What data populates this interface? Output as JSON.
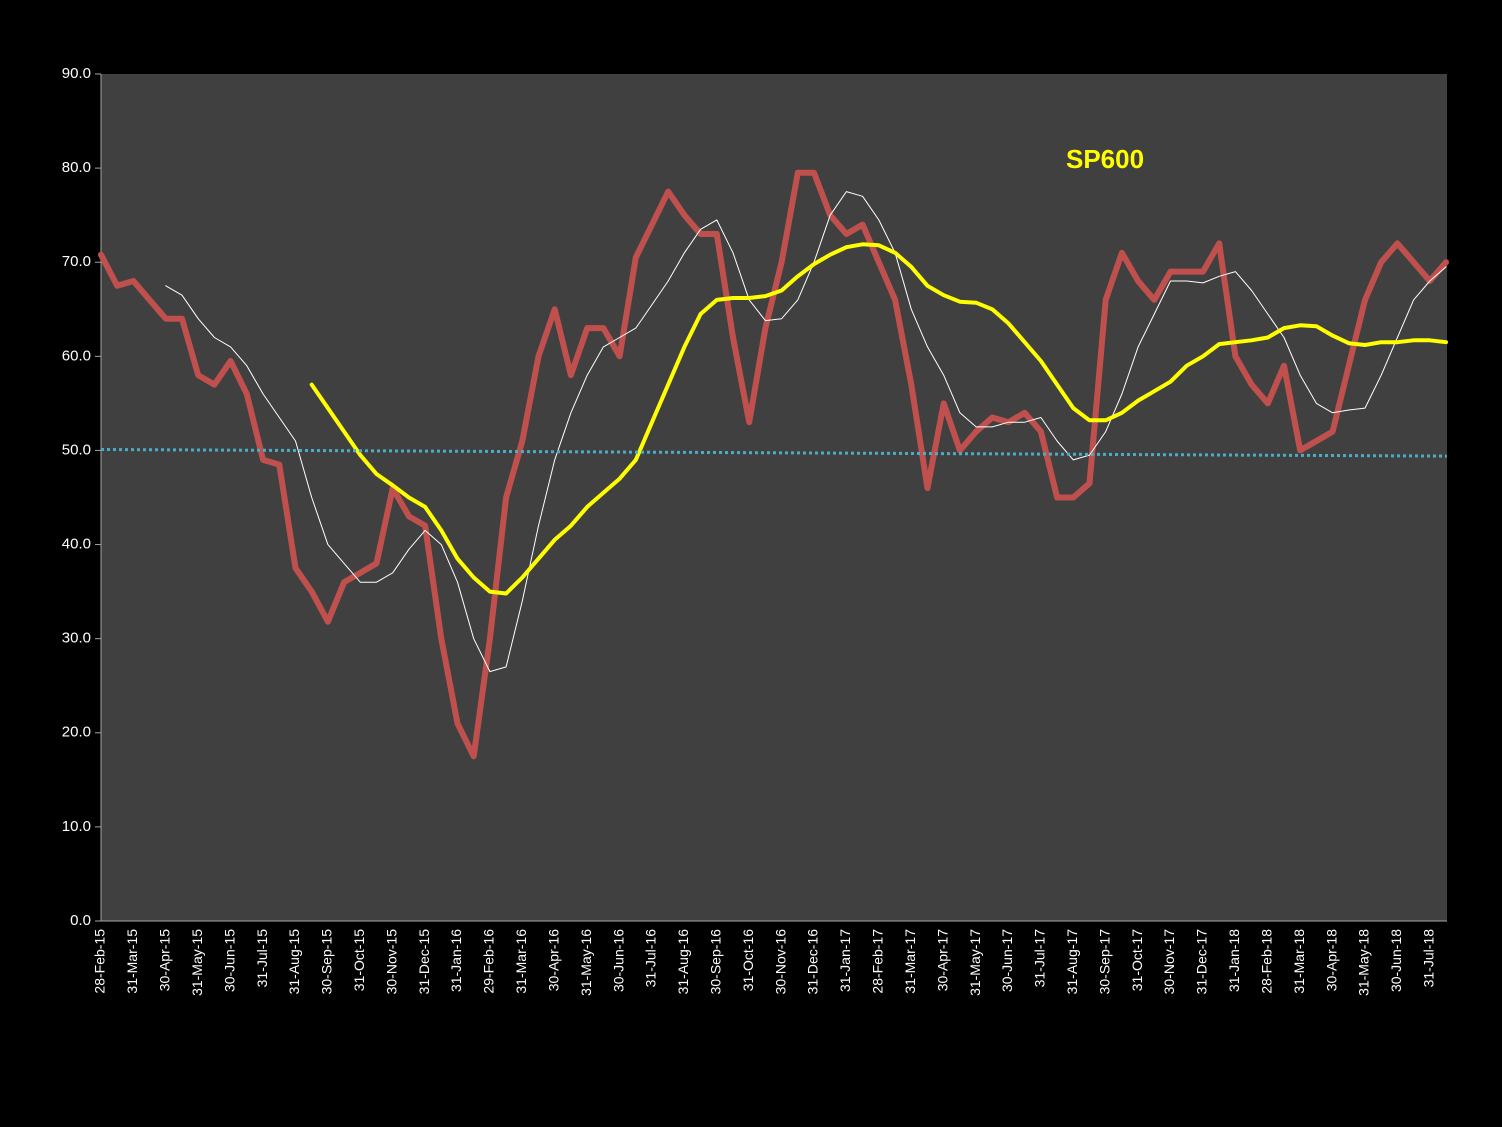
{
  "chart_data": {
    "type": "line",
    "annotation": {
      "text": "SP600",
      "color": "#ffff00"
    },
    "categories": [
      "28-Feb-15",
      null,
      "31-Mar-15",
      null,
      "30-Apr-15",
      null,
      "31-May-15",
      null,
      "30-Jun-15",
      null,
      "31-Jul-15",
      null,
      "31-Aug-15",
      null,
      "30-Sep-15",
      null,
      "31-Oct-15",
      null,
      "30-Nov-15",
      null,
      "31-Dec-15",
      null,
      "31-Jan-16",
      null,
      "29-Feb-16",
      null,
      "31-Mar-16",
      null,
      "30-Apr-16",
      null,
      "31-May-16",
      null,
      "30-Jun-16",
      null,
      "31-Jul-16",
      null,
      "31-Aug-16",
      null,
      "30-Sep-16",
      null,
      "31-Oct-16",
      null,
      "30-Nov-16",
      null,
      "31-Dec-16",
      null,
      "31-Jan-17",
      null,
      "28-Feb-17",
      null,
      "31-Mar-17",
      null,
      "30-Apr-17",
      null,
      "31-May-17",
      null,
      "30-Jun-17",
      null,
      "31-Jul-17",
      null,
      "31-Aug-17",
      null,
      "30-Sep-17",
      null,
      "31-Oct-17",
      null,
      "30-Nov-17",
      null,
      "31-Dec-17",
      null,
      "31-Jan-18",
      null,
      "28-Feb-18",
      null,
      "31-Mar-18",
      null,
      "30-Apr-18",
      null,
      "31-May-18",
      null,
      "30-Jun-18",
      null,
      "31-Jul-18",
      null
    ],
    "series": [
      {
        "color": "#c0504d",
        "width": 6,
        "values": [
          70.8,
          67.5,
          68,
          66,
          64,
          64,
          58,
          57,
          59.5,
          56,
          49,
          48.5,
          37.5,
          35,
          31.8,
          36,
          37,
          38,
          46,
          43,
          42,
          30,
          21,
          17.5,
          30,
          45,
          51,
          60,
          65,
          58,
          63,
          63,
          60,
          70.5,
          74,
          77.5,
          75,
          73,
          73,
          62,
          53,
          63,
          70,
          79.5,
          79.5,
          75,
          73,
          74,
          70,
          66,
          57,
          46,
          55,
          50,
          52,
          53.5,
          53,
          54,
          52,
          45,
          45,
          46.5,
          66,
          71,
          68,
          66,
          69,
          69,
          69,
          72,
          60,
          57,
          55,
          59,
          50,
          51,
          52,
          59,
          66,
          70,
          72,
          70,
          68,
          70
        ]
      },
      {
        "color": "#ffffff",
        "width": 1,
        "values": [
          null,
          null,
          null,
          null,
          67.5,
          66.5,
          64,
          62,
          61,
          59,
          56,
          53.5,
          51,
          45,
          40,
          38,
          36,
          36,
          37,
          39.5,
          41.5,
          40,
          36,
          30,
          26.5,
          27,
          34,
          42,
          49,
          54,
          58,
          61,
          62,
          63,
          65.5,
          68,
          71,
          73.5,
          74.5,
          71,
          66,
          63.8,
          64,
          66,
          70,
          75,
          77.5,
          77,
          74.5,
          71,
          65,
          61,
          58,
          54,
          52.5,
          52.5,
          53,
          53,
          53.5,
          51,
          49,
          49.5,
          52,
          56,
          61,
          64.5,
          68,
          68,
          67.8,
          68.5,
          69,
          67,
          64.5,
          62,
          58,
          55,
          54,
          54.3,
          54.5,
          58,
          62,
          66,
          68,
          69.5
        ]
      },
      {
        "color": "#ffff00",
        "width": 4,
        "values": [
          null,
          null,
          null,
          null,
          null,
          null,
          null,
          null,
          null,
          null,
          null,
          null,
          null,
          57,
          54.5,
          52,
          49.5,
          47.5,
          46.3,
          45,
          44,
          41.5,
          38.5,
          36.5,
          35,
          34.8,
          36.5,
          38.5,
          40.5,
          42,
          44,
          45.5,
          47,
          49,
          53,
          57,
          61,
          64.5,
          66,
          66.2,
          66.2,
          66.4,
          67,
          68.5,
          69.8,
          70.8,
          71.6,
          71.9,
          71.8,
          71,
          69.5,
          67.5,
          66.5,
          65.8,
          65.7,
          65,
          63.5,
          61.5,
          59.5,
          57,
          54.5,
          53.2,
          53.2,
          54,
          55.3,
          56.3,
          57.3,
          59,
          60,
          61.3,
          61.5,
          61.7,
          62,
          63,
          63.3,
          63.2,
          62.2,
          61.4,
          61.2,
          61.5,
          61.5,
          61.7,
          61.7,
          61.5
        ]
      }
    ],
    "reference_line": {
      "color": "#4bacc6",
      "values": [
        50.1,
        49.4
      ]
    },
    "ylim": [
      0,
      90
    ],
    "yticks": [
      {
        "value": 0,
        "label": "0.0"
      },
      {
        "value": 10,
        "label": "10.0"
      },
      {
        "value": 20,
        "label": "20.0"
      },
      {
        "value": 30,
        "label": "30.0"
      },
      {
        "value": 40,
        "label": "40.0"
      },
      {
        "value": 50,
        "label": "50.0"
      },
      {
        "value": 60,
        "label": "60.0"
      },
      {
        "value": 70,
        "label": "70.0"
      },
      {
        "value": 80,
        "label": "80.0"
      },
      {
        "value": 90,
        "label": "90.0"
      }
    ],
    "background": "#404040"
  }
}
